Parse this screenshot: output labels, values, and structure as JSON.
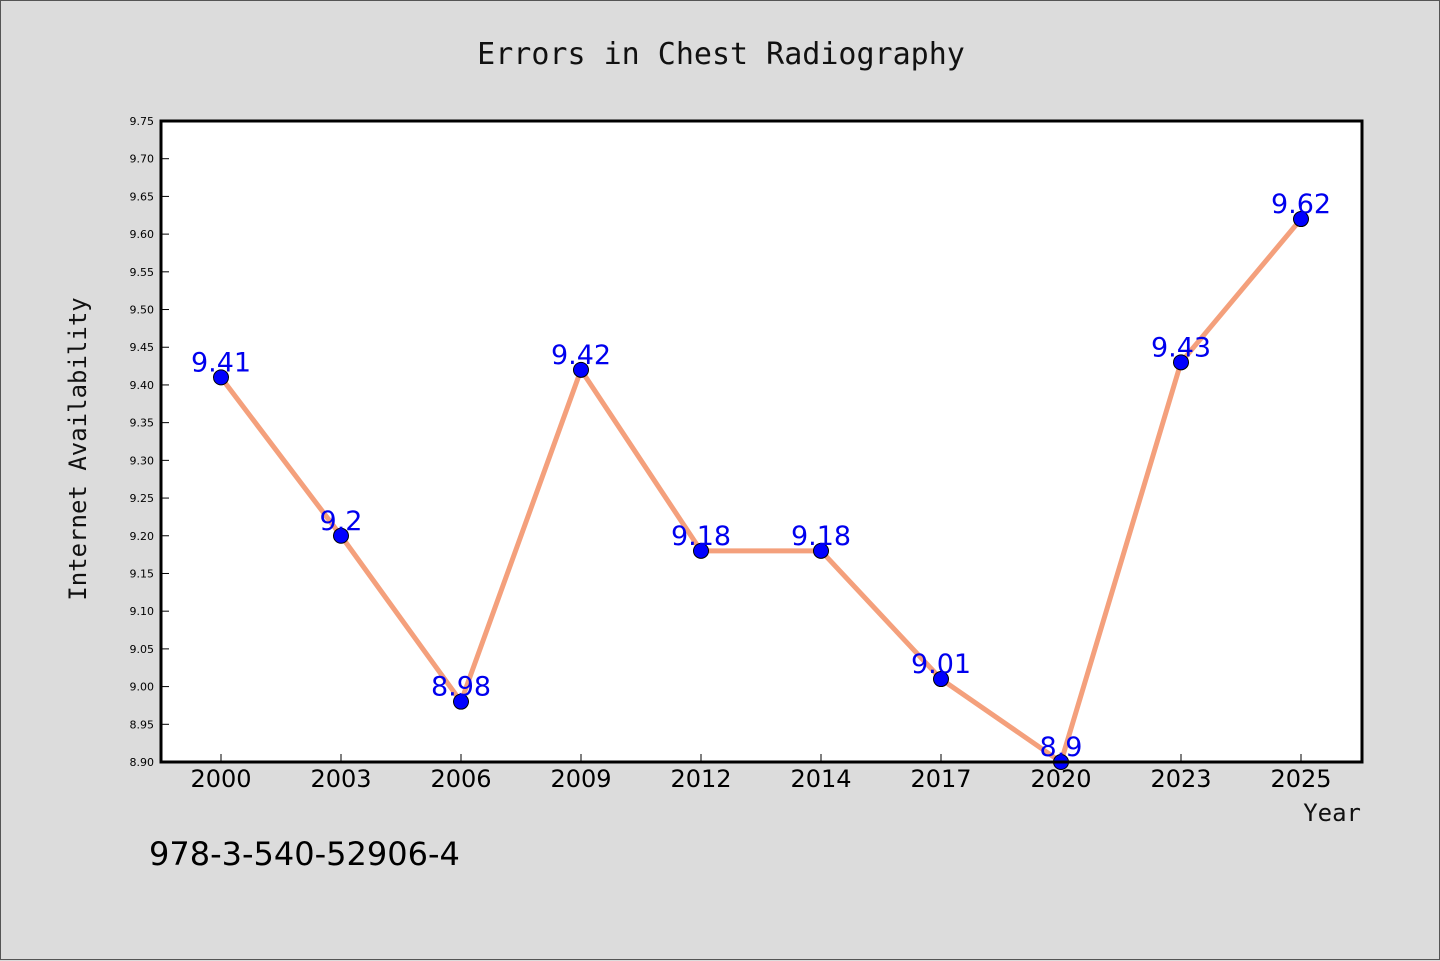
{
  "chart_data": {
    "type": "line",
    "title": "Errors in Chest Radiography",
    "xlabel": "Year",
    "ylabel": "Internet Availability",
    "categories": [
      "2000",
      "2003",
      "2006",
      "2009",
      "2012",
      "2014",
      "2017",
      "2020",
      "2023",
      "2025"
    ],
    "series": [
      {
        "values": [
          9.41,
          9.2,
          8.98,
          9.42,
          9.18,
          9.18,
          9.01,
          8.9,
          9.43,
          9.62
        ],
        "data_labels": [
          "9.41",
          "9.2",
          "8.98",
          "9.42",
          "9.18",
          "9.18",
          "9.01",
          "8.9",
          "9.43",
          "9.62"
        ],
        "line_color": "#f4a07c",
        "marker_color": "#0000ff"
      }
    ],
    "ylim": [
      8.9,
      9.75
    ],
    "yticks": [
      "8.90",
      "8.95",
      "9.00",
      "9.05",
      "9.10",
      "9.15",
      "9.20",
      "9.25",
      "9.30",
      "9.35",
      "9.40",
      "9.45",
      "9.50",
      "9.55",
      "9.60",
      "9.65",
      "9.70",
      "9.75"
    ],
    "grid": false,
    "legend": "none"
  },
  "annotation": {
    "isbn": "978-3-540-52906-4"
  },
  "colors": {
    "background": "#dcdcdc",
    "plot_background": "#ffffff",
    "data_label": "#0000ee"
  }
}
